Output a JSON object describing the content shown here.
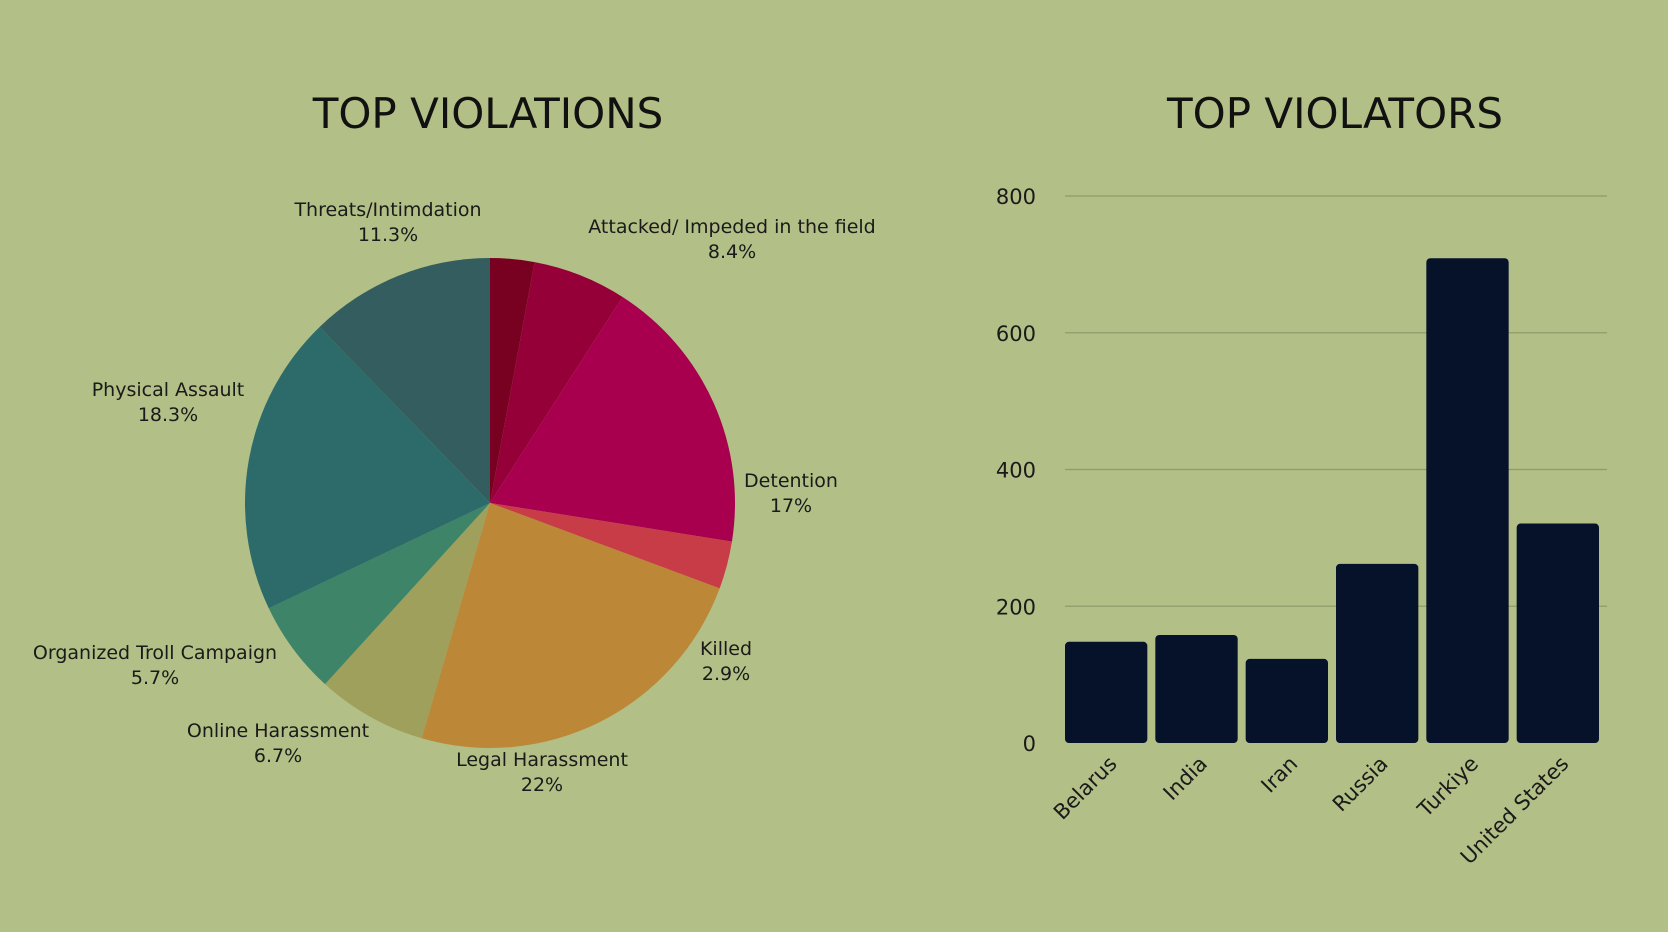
{
  "chart_data": [
    {
      "type": "pie",
      "title": "TOP VIOLATIONS",
      "slices": [
        {
          "label": "Attacked/ Impeded in the field",
          "value": 8.4,
          "display": "8.4%",
          "color": "#780020"
        },
        {
          "label": "Detention",
          "value": 17,
          "display": "17%",
          "color": "#a8004f"
        },
        {
          "label": "Killed",
          "value": 2.9,
          "display": "2.9%",
          "color": "#c83c48"
        },
        {
          "label": "Legal Harassment",
          "value": 22,
          "display": "22%",
          "color": "#bc8737"
        },
        {
          "label": "Online Harassment",
          "value": 6.7,
          "display": "6.7%",
          "color": "#9ea05c"
        },
        {
          "label": "Organized Troll Campaign",
          "value": 5.7,
          "display": "5.7%",
          "color": "#3d8468"
        },
        {
          "label": "Physical Assault",
          "value": 18.3,
          "display": "18.3%",
          "color": "#2c6b6a"
        },
        {
          "label": "Threats/Intimdation",
          "value": 11.3,
          "display": "11.3%",
          "color": "#335d5e"
        }
      ],
      "extra_colors": [
        "#960038"
      ]
    },
    {
      "type": "bar",
      "title": "TOP VIOLATORS",
      "categories": [
        "Belarus",
        "India",
        "Iran",
        "Russia",
        "Turkiye",
        "United States"
      ],
      "values": [
        148,
        158,
        123,
        262,
        709,
        321
      ],
      "ylim": [
        0,
        800
      ],
      "yticks": [
        "0",
        "200",
        "400",
        "600",
        "800"
      ],
      "ytick_values": [
        0,
        200,
        400,
        600,
        800
      ],
      "grid": true,
      "bar_color": "#06112a"
    }
  ]
}
